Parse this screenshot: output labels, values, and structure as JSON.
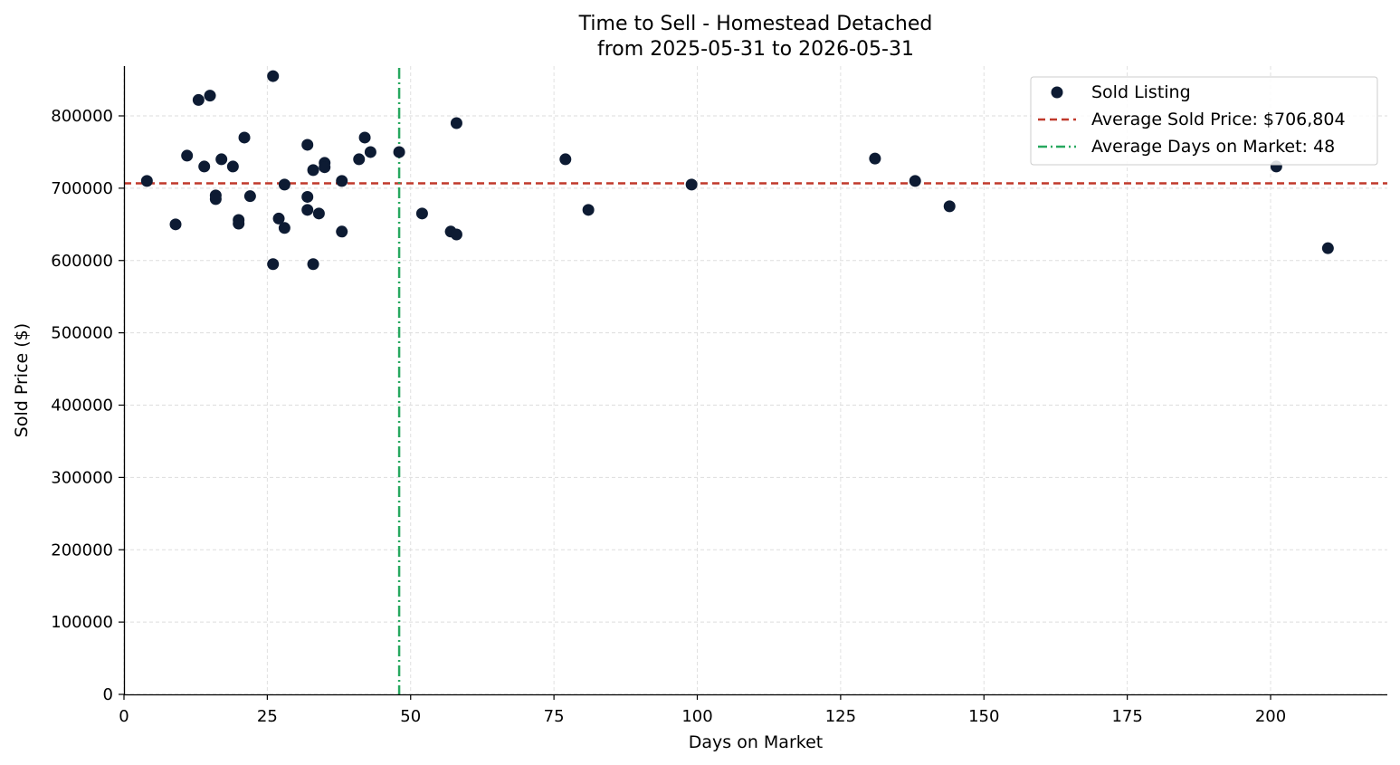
{
  "chart_data": {
    "type": "scatter",
    "title_line1": "Time to Sell - Homestead Detached",
    "title_line2": "from 2025-05-31 to 2026-05-31",
    "xlabel": "Days on Market",
    "ylabel": "Sold Price ($)",
    "xlim": [
      0,
      220
    ],
    "ylim": [
      0,
      860000
    ],
    "x_ticks": [
      0,
      25,
      50,
      75,
      100,
      125,
      150,
      175,
      200
    ],
    "y_ticks": [
      0,
      100000,
      200000,
      300000,
      400000,
      500000,
      600000,
      700000,
      800000
    ],
    "grid": true,
    "legend_position": "top-right",
    "series": [
      {
        "name": "Sold Listing",
        "color": "#0d1b33",
        "points": [
          [
            4,
            710000
          ],
          [
            9,
            650000
          ],
          [
            11,
            745000
          ],
          [
            13,
            822000
          ],
          [
            14,
            730000
          ],
          [
            15,
            828000
          ],
          [
            16,
            690000
          ],
          [
            16,
            685000
          ],
          [
            17,
            740000
          ],
          [
            19,
            730000
          ],
          [
            20,
            656000
          ],
          [
            20,
            651000
          ],
          [
            21,
            770000
          ],
          [
            22,
            689000
          ],
          [
            26,
            855000
          ],
          [
            26,
            595000
          ],
          [
            27,
            658000
          ],
          [
            28,
            705000
          ],
          [
            28,
            645000
          ],
          [
            32,
            760000
          ],
          [
            32,
            688000
          ],
          [
            32,
            670000
          ],
          [
            33,
            725000
          ],
          [
            33,
            595000
          ],
          [
            34,
            665000
          ],
          [
            35,
            735000
          ],
          [
            35,
            729000
          ],
          [
            38,
            710000
          ],
          [
            38,
            640000
          ],
          [
            41,
            740000
          ],
          [
            42,
            770000
          ],
          [
            43,
            750000
          ],
          [
            48,
            750000
          ],
          [
            52,
            665000
          ],
          [
            57,
            640000
          ],
          [
            58,
            790000
          ],
          [
            58,
            636000
          ],
          [
            77,
            740000
          ],
          [
            81,
            670000
          ],
          [
            99,
            705000
          ],
          [
            131,
            741000
          ],
          [
            138,
            710000
          ],
          [
            144,
            675000
          ],
          [
            201,
            730000
          ],
          [
            210,
            617000
          ]
        ]
      }
    ],
    "reference_lines": [
      {
        "name": "Average Sold Price: $706,804",
        "orientation": "horizontal",
        "value": 706804,
        "color": "#c0392b",
        "style": "dashed"
      },
      {
        "name": "Average Days on Market: 48",
        "orientation": "vertical",
        "value": 48,
        "color": "#27a85f",
        "style": "dashdot"
      }
    ]
  }
}
